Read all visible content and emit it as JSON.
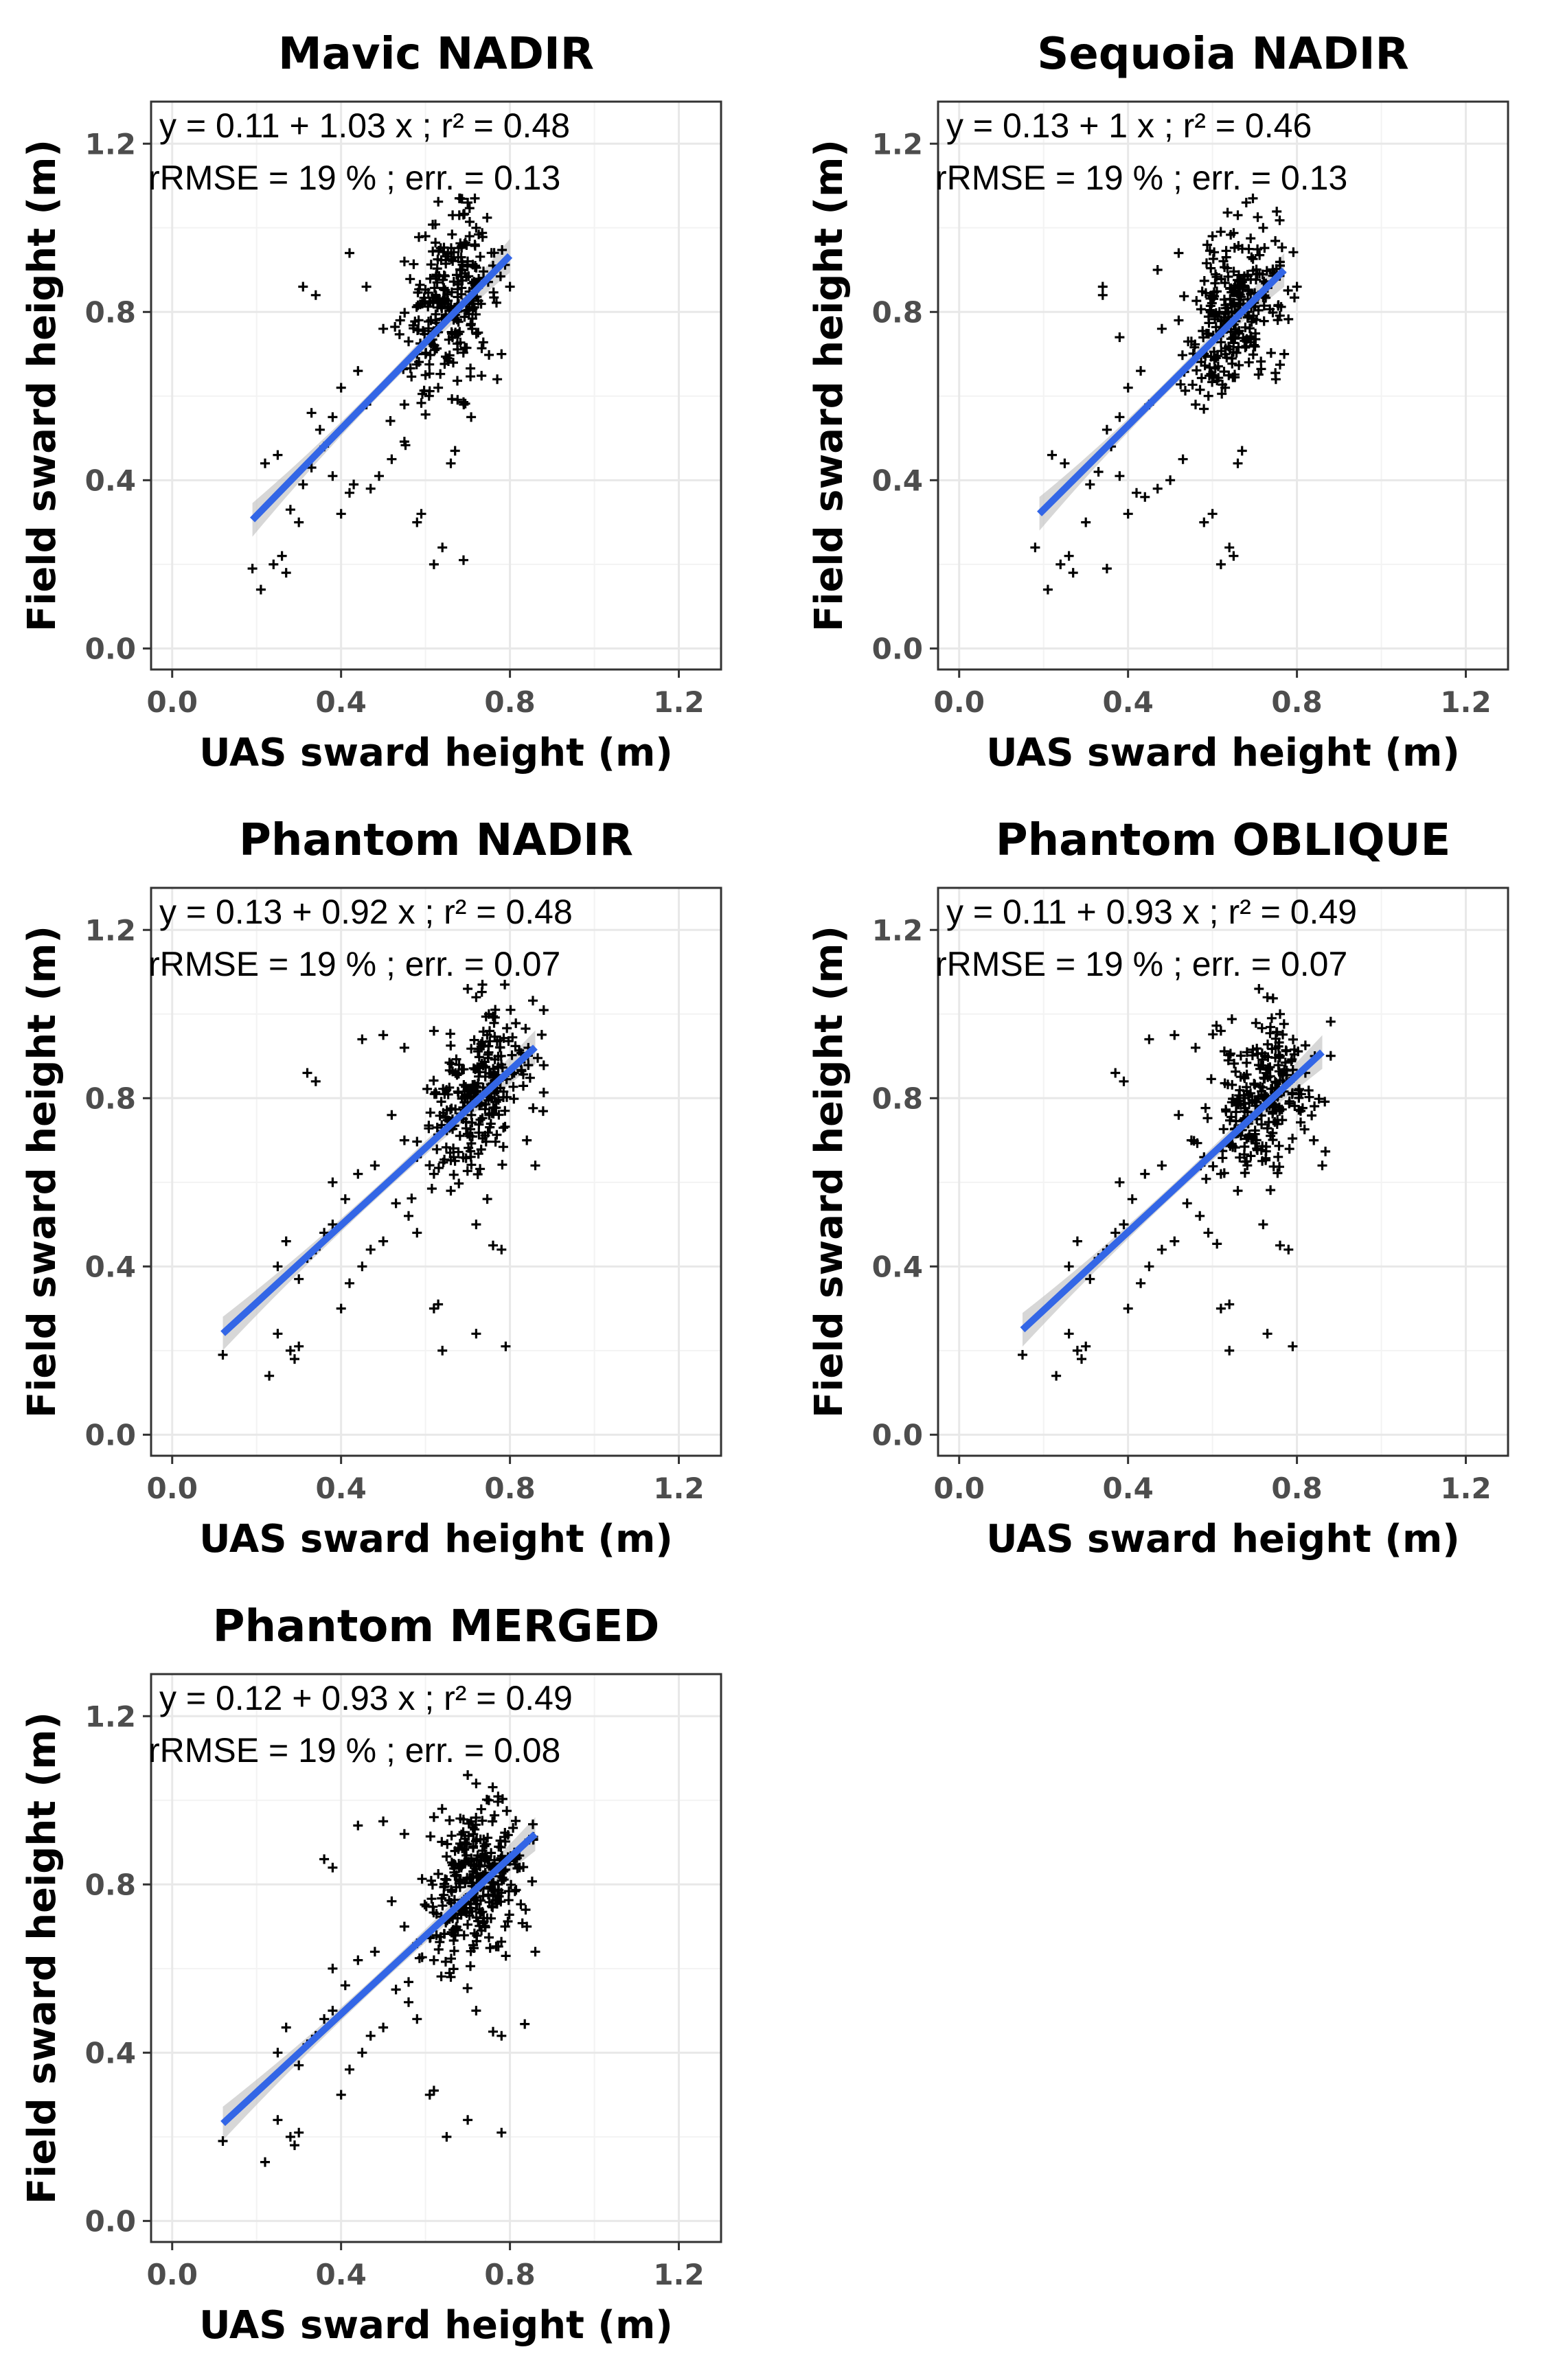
{
  "chart_data": [
    {
      "type": "scatter",
      "title": "Mavic NADIR",
      "xlabel": "UAS sward height (m)",
      "ylabel": "Field sward height (m)",
      "xlim": [
        -0.05,
        1.3
      ],
      "ylim": [
        -0.05,
        1.3
      ],
      "xticks": [
        0.0,
        0.4,
        0.8,
        1.2
      ],
      "yticks": [
        0.0,
        0.4,
        0.8,
        1.2
      ],
      "xtick_labels": [
        "0.0",
        "0.4",
        "0.8",
        "1.2"
      ],
      "ytick_labels": [
        "0.0",
        "0.4",
        "0.8",
        "1.2"
      ],
      "grid": true,
      "equation_text": "y = 0.11 + 1.03 x ; r² = 0.48",
      "error_text": "rRMSE = 19 % ; err. = 0.13",
      "regression": {
        "intercept": 0.11,
        "slope": 1.03,
        "x_range": [
          0.19,
          0.8
        ],
        "se_band": 0.04
      },
      "cluster": {
        "center": [
          0.66,
          0.82
        ],
        "spread": [
          0.055,
          0.095
        ],
        "count": 270
      },
      "points": [
        [
          0.19,
          0.19
        ],
        [
          0.21,
          0.14
        ],
        [
          0.24,
          0.2
        ],
        [
          0.26,
          0.22
        ],
        [
          0.27,
          0.18
        ],
        [
          0.28,
          0.33
        ],
        [
          0.22,
          0.44
        ],
        [
          0.25,
          0.46
        ],
        [
          0.3,
          0.3
        ],
        [
          0.31,
          0.39
        ],
        [
          0.33,
          0.43
        ],
        [
          0.36,
          0.48
        ],
        [
          0.38,
          0.41
        ],
        [
          0.4,
          0.32
        ],
        [
          0.42,
          0.37
        ],
        [
          0.43,
          0.39
        ],
        [
          0.47,
          0.38
        ],
        [
          0.49,
          0.41
        ],
        [
          0.52,
          0.45
        ],
        [
          0.55,
          0.58
        ],
        [
          0.58,
          0.3
        ],
        [
          0.59,
          0.32
        ],
        [
          0.62,
          0.2
        ],
        [
          0.64,
          0.24
        ],
        [
          0.69,
          0.21
        ],
        [
          0.66,
          0.44
        ],
        [
          0.67,
          0.47
        ],
        [
          0.63,
          0.62
        ],
        [
          0.6,
          0.65
        ],
        [
          0.58,
          0.7
        ],
        [
          0.56,
          0.73
        ],
        [
          0.54,
          0.78
        ],
        [
          0.5,
          0.76
        ],
        [
          0.46,
          0.58
        ],
        [
          0.44,
          0.66
        ],
        [
          0.4,
          0.62
        ],
        [
          0.38,
          0.55
        ],
        [
          0.35,
          0.52
        ],
        [
          0.33,
          0.56
        ],
        [
          0.42,
          0.94
        ],
        [
          0.31,
          0.86
        ],
        [
          0.34,
          0.84
        ],
        [
          0.46,
          0.86
        ],
        [
          0.55,
          0.92
        ],
        [
          0.6,
          0.98
        ],
        [
          0.7,
          1.06
        ],
        [
          0.68,
          1.03
        ],
        [
          0.72,
          1.0
        ],
        [
          0.76,
          0.91
        ],
        [
          0.8,
          0.86
        ],
        [
          0.78,
          0.7
        ],
        [
          0.77,
          0.64
        ]
      ]
    },
    {
      "type": "scatter",
      "title": "Sequoia NADIR",
      "xlabel": "UAS sward height (m)",
      "ylabel": "Field sward height (m)",
      "xlim": [
        -0.05,
        1.3
      ],
      "ylim": [
        -0.05,
        1.3
      ],
      "xticks": [
        0.0,
        0.4,
        0.8,
        1.2
      ],
      "yticks": [
        0.0,
        0.4,
        0.8,
        1.2
      ],
      "xtick_labels": [
        "0.0",
        "0.4",
        "0.8",
        "1.2"
      ],
      "ytick_labels": [
        "0.0",
        "0.4",
        "0.8",
        "1.2"
      ],
      "grid": true,
      "equation_text": "y = 0.13 + 1 x ; r² = 0.46",
      "error_text": "rRMSE = 19 % ; err. = 0.13",
      "regression": {
        "intercept": 0.13,
        "slope": 1.0,
        "x_range": [
          0.19,
          0.77
        ],
        "se_band": 0.04
      },
      "cluster": {
        "center": [
          0.66,
          0.8
        ],
        "spread": [
          0.055,
          0.095
        ],
        "count": 270
      },
      "points": [
        [
          0.18,
          0.24
        ],
        [
          0.21,
          0.14
        ],
        [
          0.24,
          0.2
        ],
        [
          0.26,
          0.22
        ],
        [
          0.27,
          0.18
        ],
        [
          0.35,
          0.19
        ],
        [
          0.22,
          0.46
        ],
        [
          0.25,
          0.44
        ],
        [
          0.3,
          0.3
        ],
        [
          0.31,
          0.39
        ],
        [
          0.33,
          0.42
        ],
        [
          0.36,
          0.48
        ],
        [
          0.38,
          0.41
        ],
        [
          0.4,
          0.32
        ],
        [
          0.42,
          0.37
        ],
        [
          0.44,
          0.36
        ],
        [
          0.47,
          0.38
        ],
        [
          0.5,
          0.4
        ],
        [
          0.53,
          0.45
        ],
        [
          0.56,
          0.58
        ],
        [
          0.58,
          0.3
        ],
        [
          0.6,
          0.32
        ],
        [
          0.62,
          0.2
        ],
        [
          0.64,
          0.24
        ],
        [
          0.65,
          0.22
        ],
        [
          0.66,
          0.44
        ],
        [
          0.67,
          0.47
        ],
        [
          0.63,
          0.62
        ],
        [
          0.6,
          0.65
        ],
        [
          0.58,
          0.7
        ],
        [
          0.55,
          0.73
        ],
        [
          0.52,
          0.78
        ],
        [
          0.48,
          0.76
        ],
        [
          0.45,
          0.58
        ],
        [
          0.43,
          0.66
        ],
        [
          0.4,
          0.62
        ],
        [
          0.38,
          0.55
        ],
        [
          0.35,
          0.52
        ],
        [
          0.34,
          0.86
        ],
        [
          0.34,
          0.84
        ],
        [
          0.38,
          0.74
        ],
        [
          0.47,
          0.9
        ],
        [
          0.52,
          0.94
        ],
        [
          0.6,
          0.98
        ],
        [
          0.68,
          1.06
        ],
        [
          0.66,
          1.03
        ],
        [
          0.72,
          1.0
        ],
        [
          0.76,
          0.91
        ],
        [
          0.8,
          0.86
        ],
        [
          0.77,
          0.7
        ],
        [
          0.75,
          0.64
        ]
      ]
    },
    {
      "type": "scatter",
      "title": "Phantom NADIR",
      "xlabel": "UAS sward height (m)",
      "ylabel": "Field sward height (m)",
      "xlim": [
        -0.05,
        1.3
      ],
      "ylim": [
        -0.05,
        1.3
      ],
      "xticks": [
        0.0,
        0.4,
        0.8,
        1.2
      ],
      "yticks": [
        0.0,
        0.4,
        0.8,
        1.2
      ],
      "xtick_labels": [
        "0.0",
        "0.4",
        "0.8",
        "1.2"
      ],
      "ytick_labels": [
        "0.0",
        "0.4",
        "0.8",
        "1.2"
      ],
      "grid": true,
      "equation_text": "y = 0.13 + 0.92 x ; r² = 0.48",
      "error_text": "rRMSE = 19 % ; err. = 0.07",
      "regression": {
        "intercept": 0.13,
        "slope": 0.92,
        "x_range": [
          0.12,
          0.86
        ],
        "se_band": 0.04
      },
      "cluster": {
        "center": [
          0.72,
          0.8
        ],
        "spread": [
          0.06,
          0.09
        ],
        "count": 260
      },
      "points": [
        [
          0.12,
          0.19
        ],
        [
          0.23,
          0.14
        ],
        [
          0.25,
          0.24
        ],
        [
          0.28,
          0.2
        ],
        [
          0.3,
          0.21
        ],
        [
          0.29,
          0.18
        ],
        [
          0.25,
          0.4
        ],
        [
          0.27,
          0.46
        ],
        [
          0.3,
          0.37
        ],
        [
          0.32,
          0.42
        ],
        [
          0.34,
          0.44
        ],
        [
          0.36,
          0.48
        ],
        [
          0.38,
          0.5
        ],
        [
          0.4,
          0.3
        ],
        [
          0.42,
          0.36
        ],
        [
          0.45,
          0.4
        ],
        [
          0.47,
          0.44
        ],
        [
          0.5,
          0.46
        ],
        [
          0.53,
          0.55
        ],
        [
          0.56,
          0.52
        ],
        [
          0.58,
          0.48
        ],
        [
          0.62,
          0.3
        ],
        [
          0.63,
          0.31
        ],
        [
          0.64,
          0.2
        ],
        [
          0.72,
          0.24
        ],
        [
          0.79,
          0.21
        ],
        [
          0.76,
          0.45
        ],
        [
          0.78,
          0.44
        ],
        [
          0.72,
          0.5
        ],
        [
          0.66,
          0.58
        ],
        [
          0.62,
          0.62
        ],
        [
          0.58,
          0.66
        ],
        [
          0.55,
          0.7
        ],
        [
          0.52,
          0.76
        ],
        [
          0.48,
          0.64
        ],
        [
          0.44,
          0.62
        ],
        [
          0.41,
          0.56
        ],
        [
          0.38,
          0.6
        ],
        [
          0.32,
          0.86
        ],
        [
          0.34,
          0.84
        ],
        [
          0.45,
          0.94
        ],
        [
          0.5,
          0.95
        ],
        [
          0.55,
          0.92
        ],
        [
          0.62,
          0.96
        ],
        [
          0.7,
          1.06
        ],
        [
          0.72,
          1.04
        ],
        [
          0.75,
          1.0
        ],
        [
          0.81,
          0.86
        ],
        [
          0.86,
          0.64
        ],
        [
          0.84,
          0.7
        ]
      ]
    },
    {
      "type": "scatter",
      "title": "Phantom OBLIQUE",
      "xlabel": "UAS sward height (m)",
      "ylabel": "Field sward height (m)",
      "xlim": [
        -0.05,
        1.3
      ],
      "ylim": [
        -0.05,
        1.3
      ],
      "xticks": [
        0.0,
        0.4,
        0.8,
        1.2
      ],
      "yticks": [
        0.0,
        0.4,
        0.8,
        1.2
      ],
      "xtick_labels": [
        "0.0",
        "0.4",
        "0.8",
        "1.2"
      ],
      "ytick_labels": [
        "0.0",
        "0.4",
        "0.8",
        "1.2"
      ],
      "grid": true,
      "equation_text": "y = 0.11 + 0.93 x ; r² = 0.49",
      "error_text": "rRMSE = 19 % ; err. = 0.07",
      "regression": {
        "intercept": 0.11,
        "slope": 0.93,
        "x_range": [
          0.15,
          0.86
        ],
        "se_band": 0.04
      },
      "cluster": {
        "center": [
          0.72,
          0.8
        ],
        "spread": [
          0.06,
          0.09
        ],
        "count": 260
      },
      "points": [
        [
          0.15,
          0.19
        ],
        [
          0.23,
          0.14
        ],
        [
          0.26,
          0.24
        ],
        [
          0.28,
          0.2
        ],
        [
          0.3,
          0.21
        ],
        [
          0.29,
          0.18
        ],
        [
          0.26,
          0.4
        ],
        [
          0.28,
          0.46
        ],
        [
          0.31,
          0.37
        ],
        [
          0.33,
          0.42
        ],
        [
          0.35,
          0.44
        ],
        [
          0.37,
          0.48
        ],
        [
          0.39,
          0.5
        ],
        [
          0.4,
          0.3
        ],
        [
          0.43,
          0.36
        ],
        [
          0.45,
          0.4
        ],
        [
          0.48,
          0.44
        ],
        [
          0.51,
          0.46
        ],
        [
          0.54,
          0.55
        ],
        [
          0.57,
          0.52
        ],
        [
          0.59,
          0.48
        ],
        [
          0.62,
          0.3
        ],
        [
          0.64,
          0.31
        ],
        [
          0.64,
          0.2
        ],
        [
          0.73,
          0.24
        ],
        [
          0.79,
          0.21
        ],
        [
          0.76,
          0.45
        ],
        [
          0.78,
          0.44
        ],
        [
          0.72,
          0.5
        ],
        [
          0.66,
          0.58
        ],
        [
          0.62,
          0.62
        ],
        [
          0.58,
          0.66
        ],
        [
          0.55,
          0.7
        ],
        [
          0.52,
          0.76
        ],
        [
          0.48,
          0.64
        ],
        [
          0.44,
          0.62
        ],
        [
          0.41,
          0.56
        ],
        [
          0.38,
          0.6
        ],
        [
          0.37,
          0.86
        ],
        [
          0.39,
          0.84
        ],
        [
          0.45,
          0.94
        ],
        [
          0.51,
          0.95
        ],
        [
          0.56,
          0.92
        ],
        [
          0.62,
          0.96
        ],
        [
          0.71,
          1.06
        ],
        [
          0.73,
          1.04
        ],
        [
          0.76,
          1.0
        ],
        [
          0.82,
          0.86
        ],
        [
          0.86,
          0.64
        ],
        [
          0.84,
          0.7
        ]
      ]
    },
    {
      "type": "scatter",
      "title": "Phantom MERGED",
      "xlabel": "UAS sward height (m)",
      "ylabel": "Field sward height (m)",
      "xlim": [
        -0.05,
        1.3
      ],
      "ylim": [
        -0.05,
        1.3
      ],
      "xticks": [
        0.0,
        0.4,
        0.8,
        1.2
      ],
      "yticks": [
        0.0,
        0.4,
        0.8,
        1.2
      ],
      "xtick_labels": [
        "0.0",
        "0.4",
        "0.8",
        "1.2"
      ],
      "ytick_labels": [
        "0.0",
        "0.4",
        "0.8",
        "1.2"
      ],
      "grid": true,
      "equation_text": "y = 0.12 + 0.93 x ; r² = 0.49",
      "error_text": "rRMSE = 19 % ; err. = 0.08",
      "regression": {
        "intercept": 0.12,
        "slope": 0.93,
        "x_range": [
          0.12,
          0.86
        ],
        "se_band": 0.04
      },
      "cluster": {
        "center": [
          0.72,
          0.8
        ],
        "spread": [
          0.06,
          0.09
        ],
        "count": 300
      },
      "points": [
        [
          0.12,
          0.19
        ],
        [
          0.22,
          0.14
        ],
        [
          0.25,
          0.24
        ],
        [
          0.28,
          0.2
        ],
        [
          0.3,
          0.21
        ],
        [
          0.29,
          0.18
        ],
        [
          0.25,
          0.4
        ],
        [
          0.27,
          0.46
        ],
        [
          0.3,
          0.37
        ],
        [
          0.32,
          0.42
        ],
        [
          0.34,
          0.44
        ],
        [
          0.36,
          0.48
        ],
        [
          0.38,
          0.5
        ],
        [
          0.4,
          0.3
        ],
        [
          0.42,
          0.36
        ],
        [
          0.45,
          0.4
        ],
        [
          0.47,
          0.44
        ],
        [
          0.5,
          0.46
        ],
        [
          0.53,
          0.55
        ],
        [
          0.56,
          0.52
        ],
        [
          0.58,
          0.48
        ],
        [
          0.61,
          0.3
        ],
        [
          0.62,
          0.31
        ],
        [
          0.65,
          0.2
        ],
        [
          0.7,
          0.24
        ],
        [
          0.78,
          0.21
        ],
        [
          0.76,
          0.45
        ],
        [
          0.78,
          0.44
        ],
        [
          0.72,
          0.5
        ],
        [
          0.66,
          0.58
        ],
        [
          0.62,
          0.62
        ],
        [
          0.58,
          0.66
        ],
        [
          0.55,
          0.7
        ],
        [
          0.52,
          0.76
        ],
        [
          0.48,
          0.64
        ],
        [
          0.44,
          0.62
        ],
        [
          0.41,
          0.56
        ],
        [
          0.38,
          0.6
        ],
        [
          0.36,
          0.86
        ],
        [
          0.38,
          0.84
        ],
        [
          0.44,
          0.94
        ],
        [
          0.5,
          0.95
        ],
        [
          0.55,
          0.92
        ],
        [
          0.62,
          0.96
        ],
        [
          0.7,
          1.06
        ],
        [
          0.72,
          1.04
        ],
        [
          0.75,
          1.0
        ],
        [
          0.81,
          0.86
        ],
        [
          0.86,
          0.64
        ],
        [
          0.84,
          0.7
        ]
      ]
    }
  ]
}
